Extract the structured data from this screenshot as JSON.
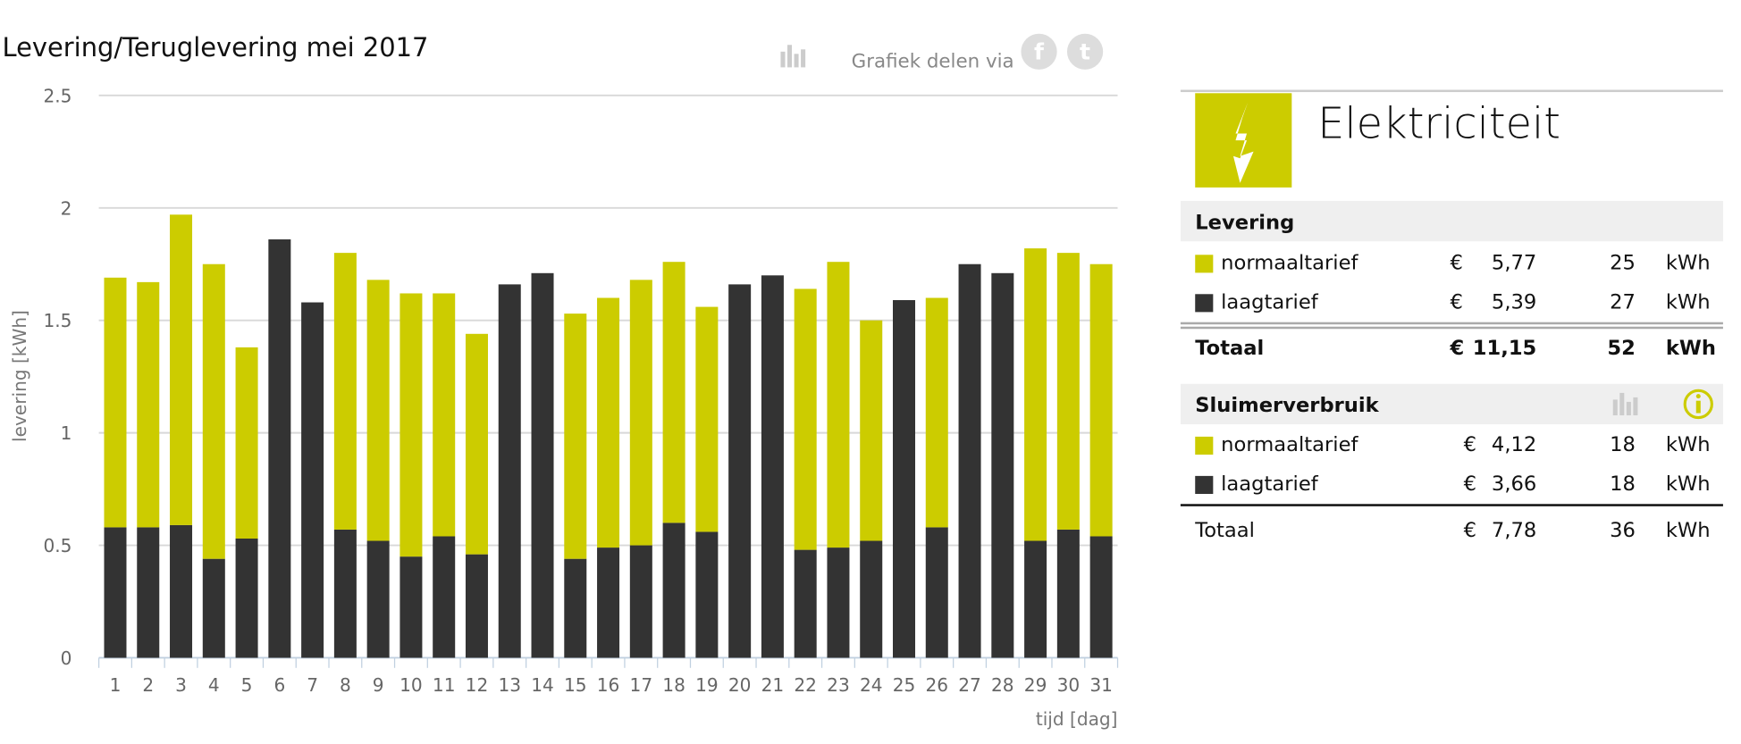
{
  "header": {
    "title": "Levering/Teruglevering mei 2017",
    "share_label": "Grafiek delen via",
    "icons": [
      "chart-icon",
      "facebook-icon",
      "twitter-icon"
    ]
  },
  "colors": {
    "normaaltarief": "#cccc00",
    "laagtarief": "#333333",
    "grid": "#d8d8d8"
  },
  "chart_data": {
    "type": "bar",
    "stacked": true,
    "title": "Levering/Teruglevering mei 2017",
    "xlabel": "tijd [dag]",
    "ylabel": "levering [kWh]",
    "ylim": [
      0,
      2.5
    ],
    "yticks": [
      "0",
      "0.5",
      "1",
      "1.5",
      "2",
      "2.5"
    ],
    "yticks_values": [
      0,
      0.5,
      1,
      1.5,
      2,
      2.5
    ],
    "grid": true,
    "categories": [
      "1",
      "2",
      "3",
      "4",
      "5",
      "6",
      "7",
      "8",
      "9",
      "10",
      "11",
      "12",
      "13",
      "14",
      "15",
      "16",
      "17",
      "18",
      "19",
      "20",
      "21",
      "22",
      "23",
      "24",
      "25",
      "26",
      "27",
      "28",
      "29",
      "30",
      "31"
    ],
    "series": [
      {
        "name": "laagtarief",
        "color": "#333333",
        "values": [
          0.58,
          0.58,
          0.59,
          0.44,
          0.53,
          1.86,
          1.58,
          0.57,
          0.52,
          0.45,
          0.54,
          0.46,
          1.66,
          1.71,
          0.44,
          0.49,
          0.5,
          0.6,
          0.56,
          1.66,
          1.7,
          0.48,
          0.49,
          0.52,
          1.59,
          0.58,
          1.75,
          1.71,
          0.52,
          0.57,
          0.54
        ]
      },
      {
        "name": "normaaltarief",
        "color": "#cccc00",
        "values": [
          1.11,
          1.09,
          1.38,
          1.31,
          0.85,
          0,
          0,
          1.23,
          1.16,
          1.17,
          1.08,
          0.98,
          0,
          0,
          1.09,
          1.11,
          1.18,
          1.16,
          1.0,
          0,
          0,
          1.16,
          1.27,
          0.98,
          0,
          1.02,
          0,
          0,
          1.3,
          1.23,
          1.21
        ]
      }
    ]
  },
  "panel": {
    "title": "Elektriciteit",
    "icon": "lightning-icon",
    "levering": {
      "heading": "Levering",
      "rows": [
        {
          "label": "normaaltarief",
          "currency": "€",
          "amount": "5,77",
          "kwh": "25",
          "unit": "kWh"
        },
        {
          "label": "laagtarief",
          "currency": "€",
          "amount": "5,39",
          "kwh": "27",
          "unit": "kWh"
        }
      ],
      "total": {
        "label": "Totaal",
        "currency": "€",
        "amount": "11,15",
        "kwh": "52",
        "unit": "kWh"
      }
    },
    "sluimer": {
      "heading": "Sluimerverbruik",
      "icons": [
        "chart-icon",
        "info-icon"
      ],
      "rows": [
        {
          "label": "normaaltarief",
          "currency": "€",
          "amount": "4,12",
          "kwh": "18",
          "unit": "kWh"
        },
        {
          "label": "laagtarief",
          "currency": "€",
          "amount": "3,66",
          "kwh": "18",
          "unit": "kWh"
        }
      ],
      "total": {
        "label": "Totaal",
        "currency": "€",
        "amount": "7,78",
        "kwh": "36",
        "unit": "kWh"
      }
    }
  }
}
